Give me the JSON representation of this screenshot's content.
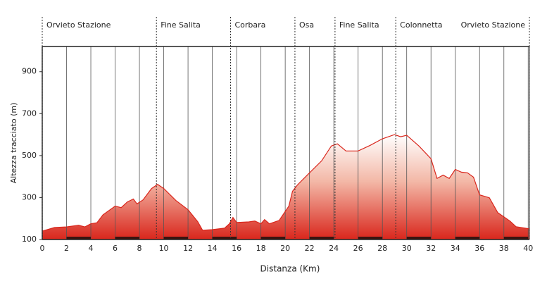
{
  "chart_data": {
    "type": "area",
    "x_label": "Distanza (Km)",
    "y_label": "Altezza tracciato (m)",
    "xlim": [
      0,
      40.1
    ],
    "ylim": [
      100,
      1020
    ],
    "xticks": [
      0,
      2,
      4,
      6,
      8,
      10,
      12,
      14,
      16,
      18,
      20,
      22,
      24,
      26,
      28,
      30,
      32,
      34,
      36,
      38,
      40
    ],
    "yticks": [
      100,
      300,
      500,
      700,
      900
    ],
    "grid": "x",
    "color": "#d9261c",
    "x": [
      0,
      1,
      2,
      3,
      3.5,
      4,
      4.5,
      5,
      6,
      6.5,
      7,
      7.5,
      7.8,
      8.3,
      9,
      9.5,
      10,
      11,
      12,
      12.8,
      13.2,
      14,
      15,
      15.4,
      15.7,
      16,
      17,
      17.5,
      18,
      18.3,
      18.7,
      19.5,
      20.3,
      20.6,
      21,
      22,
      23,
      23.8,
      24.3,
      25,
      26,
      27,
      28,
      29,
      29.5,
      30,
      31,
      32,
      32.5,
      33,
      33.5,
      34,
      34.5,
      35,
      35.5,
      36,
      36.8,
      37.5,
      38.5,
      39,
      40.1
    ],
    "values": [
      140,
      157,
      160,
      168,
      160,
      175,
      180,
      218,
      259,
      252,
      279,
      293,
      270,
      289,
      343,
      363,
      343,
      286,
      242,
      185,
      144,
      147,
      154,
      175,
      205,
      181,
      184,
      188,
      175,
      195,
      175,
      191,
      259,
      330,
      360,
      418,
      475,
      546,
      556,
      522,
      522,
      549,
      580,
      600,
      590,
      597,
      546,
      485,
      391,
      407,
      391,
      434,
      421,
      418,
      397,
      313,
      299,
      228,
      188,
      161,
      151
    ],
    "locations": [
      {
        "label": "Orvieto Stazione",
        "x": 0
      },
      {
        "label": "Fine Salita",
        "x": 9.4
      },
      {
        "label": "Corbara",
        "x": 15.5
      },
      {
        "label": "Osa",
        "x": 20.8
      },
      {
        "label": "Fine Salita",
        "x": 24.1
      },
      {
        "label": "Colonnetta",
        "x": 29.1
      },
      {
        "label": "Orvieto Stazione",
        "x": 40.1
      }
    ]
  }
}
